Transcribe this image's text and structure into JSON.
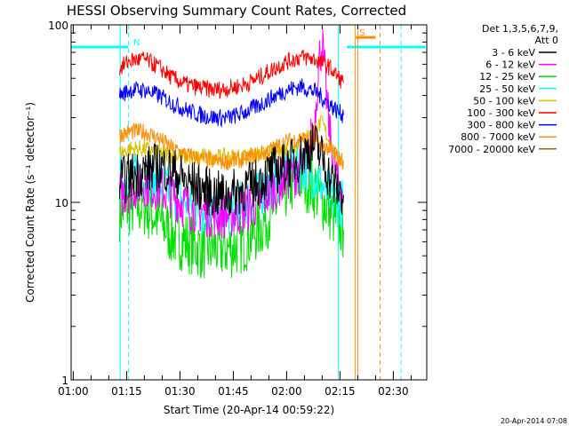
{
  "chart_data": {
    "type": "line",
    "title": "HESSI Observing Summary Count Rates, Corrected",
    "xlabel": "Start Time (20-Apr-14 00:59:22)",
    "ylabel": "Corrected Count Rate (s⁻¹ detector⁻¹)",
    "timestamp": "20-Apr-2014 07:08",
    "x_unit": "minutes after 01:00 UT",
    "xlim": [
      -0.6,
      99.4
    ],
    "ylim": [
      1,
      100
    ],
    "yscale": "log",
    "x_tick_labels": [
      "01:00",
      "01:15",
      "01:30",
      "01:45",
      "02:00",
      "02:15",
      "02:30"
    ],
    "x_ticks": [
      0,
      15,
      30,
      45,
      60,
      75,
      90
    ],
    "y_ticks": [
      1,
      10,
      100
    ],
    "y_tick_labels": [
      "1",
      "10",
      "100"
    ],
    "legend": {
      "header": [
        "Det 1,3,5,6,7,9,",
        "Att 0"
      ],
      "placement": "right",
      "entries": [
        {
          "label": "3 - 6 keV",
          "color": "#000000"
        },
        {
          "label": "6 - 12 keV",
          "color": "#ff00ff"
        },
        {
          "label": "12 - 25 keV",
          "color": "#00e000"
        },
        {
          "label": "25 - 50 keV",
          "color": "#00ffff"
        },
        {
          "label": "50 - 100 keV",
          "color": "#d6c000"
        },
        {
          "label": "100 - 300 keV",
          "color": "#ff0000"
        },
        {
          "label": "300 - 800 keV",
          "color": "#0000ff"
        },
        {
          "label": "800 - 7000 keV",
          "color": "#ff8c00"
        },
        {
          "label": "7000 - 20000 keV",
          "color": "#8b6914"
        }
      ]
    },
    "series": [
      {
        "name": "3 - 6 keV",
        "color": "#000000",
        "x": [
          13,
          16,
          20,
          24,
          28,
          32,
          36,
          40,
          44,
          48,
          52,
          56,
          60,
          62,
          64,
          66,
          68,
          70,
          72,
          74,
          76
        ],
        "y": [
          13,
          14,
          15,
          16,
          15,
          13,
          12,
          11,
          11,
          12,
          13,
          15,
          16,
          17,
          18,
          20,
          21,
          18,
          14,
          12,
          11
        ]
      },
      {
        "name": "6 - 12 keV",
        "color": "#ff00ff",
        "x": [
          13,
          16,
          20,
          24,
          28,
          32,
          36,
          40,
          44,
          48,
          52,
          56,
          60,
          64,
          66,
          68,
          69,
          70,
          71,
          72,
          74,
          76
        ],
        "y": [
          11,
          12,
          13,
          12,
          11,
          9.5,
          9,
          8.5,
          8.5,
          9,
          10,
          12,
          14,
          15,
          18,
          30,
          60,
          80,
          45,
          25,
          14,
          11
        ]
      },
      {
        "name": "12 - 25 keV",
        "color": "#00e000",
        "x": [
          13,
          16,
          20,
          24,
          28,
          32,
          36,
          40,
          44,
          48,
          52,
          56,
          60,
          64,
          68,
          72,
          74,
          76
        ],
        "y": [
          9,
          9.5,
          9.5,
          8,
          6.5,
          6,
          5.5,
          5.5,
          5.5,
          6,
          7,
          9,
          12,
          14,
          12,
          9,
          8,
          7
        ]
      },
      {
        "name": "25 - 50 keV",
        "color": "#00ffff",
        "x": [
          13,
          16,
          20,
          24,
          28,
          32,
          36,
          40,
          44,
          48,
          52,
          56,
          60,
          64,
          68,
          72,
          74,
          76
        ],
        "y": [
          13,
          14,
          14,
          13,
          11,
          10,
          9,
          9,
          9,
          10,
          11,
          13,
          15,
          16,
          14,
          11,
          10,
          10
        ]
      },
      {
        "name": "50 - 100 keV",
        "color": "#d6c000",
        "x": [
          13,
          16,
          20,
          24,
          28,
          32,
          36,
          40,
          44,
          48,
          52,
          56,
          60,
          62,
          64,
          66,
          68,
          70,
          72,
          74,
          76
        ],
        "y": [
          19,
          20,
          20,
          19,
          18.5,
          18,
          18,
          18,
          18,
          18,
          18.5,
          19,
          20,
          21,
          22,
          24,
          26,
          28,
          22,
          18,
          17
        ]
      },
      {
        "name": "100 - 300 keV",
        "color": "#ff0000",
        "x": [
          13,
          16,
          20,
          24,
          28,
          32,
          36,
          40,
          44,
          48,
          52,
          56,
          60,
          64,
          68,
          72,
          74,
          76
        ],
        "y": [
          57,
          63,
          64,
          58,
          50,
          46,
          44,
          43,
          44,
          46,
          50,
          56,
          62,
          66,
          64,
          58,
          52,
          47
        ]
      },
      {
        "name": "300 - 800 keV",
        "color": "#0000ff",
        "x": [
          13,
          16,
          20,
          24,
          28,
          32,
          36,
          40,
          44,
          48,
          52,
          56,
          60,
          64,
          68,
          72,
          74,
          76
        ],
        "y": [
          40,
          43,
          43,
          40,
          36,
          33,
          31,
          30,
          30,
          32,
          35,
          39,
          43,
          45,
          42,
          36,
          33,
          31
        ]
      },
      {
        "name": "800 - 7000 keV",
        "color": "#ff8c00",
        "x": [
          13,
          16,
          20,
          24,
          28,
          32,
          36,
          40,
          44,
          48,
          52,
          56,
          60,
          64,
          68,
          72,
          74,
          76
        ],
        "y": [
          24,
          25,
          25,
          23,
          20,
          18.5,
          17.5,
          17,
          17,
          17.5,
          18.5,
          20,
          22,
          23,
          22,
          20,
          18,
          17
        ]
      }
    ],
    "flags": [
      {
        "type": "band",
        "label": "N",
        "color": "#00ffff",
        "from": -0.6,
        "to": 15.5,
        "level": 75
      },
      {
        "type": "band",
        "label": "",
        "color": "#00ffff",
        "from": 77,
        "to": 99,
        "level": 75
      },
      {
        "type": "band",
        "label": "S",
        "color": "#ff8c00",
        "from": 79.5,
        "to": 85,
        "level": 85
      }
    ],
    "markers": [
      {
        "x": 13.2,
        "color": "#00ffff",
        "style": "solid"
      },
      {
        "x": 15.5,
        "color": "#00ffff",
        "style": "dashed"
      },
      {
        "x": 74.5,
        "color": "#00ffff",
        "style": "solid"
      },
      {
        "x": 79.3,
        "color": "#ff8c00",
        "style": "solid"
      },
      {
        "x": 80.0,
        "color": "#ff8c00",
        "style": "solid"
      },
      {
        "x": 86.3,
        "color": "#ff8c00",
        "style": "dashed"
      },
      {
        "x": 92.2,
        "color": "#00ffff",
        "style": "dashed"
      }
    ]
  }
}
